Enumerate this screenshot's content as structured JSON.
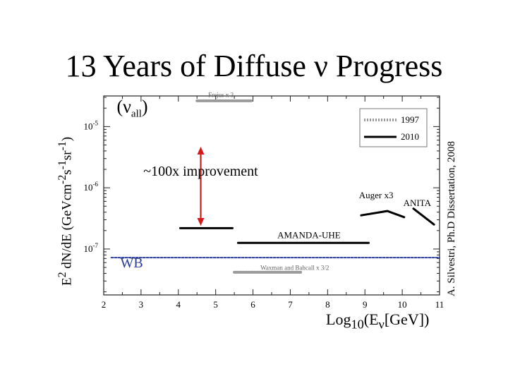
{
  "title": "13 Years of Diffuse ν Progress",
  "credit": "A. Silvestri, Ph.D Dissertation, 2008",
  "colors": {
    "frame": "#222222",
    "arrow": "#d7191c",
    "wb_line": "#2b3d9c",
    "old_limit": "#9a9a9a",
    "new_limit": "#000000"
  },
  "chart_data": {
    "type": "line",
    "title": "13 Years of Diffuse ν Progress",
    "ylabel": {
      "base": "E",
      "sup1": "2",
      "mid": " dN/dE (GeVcm",
      "sup2": "-2",
      "s": "s",
      "sup3": "-1",
      "sr": "sr",
      "sup4": "-1",
      "close": ")"
    },
    "xlabel": {
      "pre": "Log",
      "sub1": "10",
      "mid": "(E",
      "sub2": "ν",
      "post": "[GeV])"
    },
    "xlim": [
      2,
      11
    ],
    "ylim_log10": [
      -7.75,
      -4.5
    ],
    "x_ticks": [
      2,
      3,
      4,
      5,
      6,
      7,
      8,
      9,
      10,
      11
    ],
    "y_ticks": [
      {
        "log10": -5,
        "base": "10",
        "exp": "-5"
      },
      {
        "log10": -6,
        "base": "10",
        "exp": "-6"
      },
      {
        "log10": -7,
        "base": "10",
        "exp": "-7"
      }
    ],
    "flavor_label": {
      "open": "(ν",
      "sub": "all",
      "close": ")"
    },
    "legend": {
      "position": "top-right",
      "entries": [
        {
          "name": "1997",
          "style": "dotted-gray"
        },
        {
          "name": "2010",
          "style": "solid-black"
        }
      ]
    },
    "series": [
      {
        "name": "Frejus x 3",
        "style": "dotted-gray",
        "x": [
          4.5,
          5.95
        ],
        "y": [
          -4.58,
          -4.58
        ]
      },
      {
        "name": "Waxman and Bahcall x 3/2",
        "style": "dotted-gray",
        "x": [
          5.5,
          7.3
        ],
        "y": [
          -7.38,
          -7.38
        ]
      },
      {
        "name": "WB",
        "style": "dashed-blue",
        "x": [
          2.2,
          11.0
        ],
        "y": [
          -7.14,
          -7.14
        ]
      },
      {
        "name": "",
        "style": "solid-black",
        "x": [
          4.05,
          5.45
        ],
        "y": [
          -6.66,
          -6.66
        ]
      },
      {
        "name": "AMANDA-UHE",
        "style": "solid-black",
        "x": [
          5.6,
          9.1
        ],
        "y": [
          -6.9,
          -6.9
        ]
      },
      {
        "name": "Auger x3",
        "style": "solid-black",
        "x": [
          8.9,
          9.6,
          10.05
        ],
        "y": [
          -6.45,
          -6.38,
          -6.48
        ]
      },
      {
        "name": "ANITA",
        "style": "solid-black",
        "x": [
          10.3,
          10.85
        ],
        "y": [
          -6.34,
          -6.6
        ]
      }
    ],
    "annotations": [
      {
        "text": "~100x improvement",
        "x": 4.6,
        "y_log10": -5.8
      },
      {
        "text": "Auger x3",
        "x": 9.3,
        "y_log10": -6.17
      },
      {
        "text": "ANITA",
        "x": 10.4,
        "y_log10": -6.3
      },
      {
        "text": "AMANDA-UHE",
        "x": 7.5,
        "y_log10": -6.82
      },
      {
        "text": "WB",
        "x": 2.75,
        "y_log10": -7.3
      },
      {
        "text": "Frejus x 3",
        "x": 4.8,
        "y_log10": -4.52
      },
      {
        "text": "Waxman and Bahcall x 3/2",
        "x": 6.2,
        "y_log10": -7.34
      }
    ],
    "arrow": {
      "x": 4.6,
      "y_from_log10": -5.33,
      "y_to_log10": -6.62
    }
  }
}
